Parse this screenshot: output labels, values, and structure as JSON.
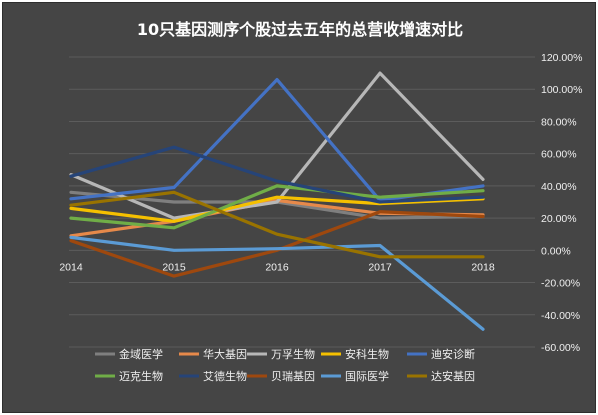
{
  "chart_data": {
    "type": "line",
    "title": "10只基因测序个股过去五年的总营收增速对比",
    "xlabel": "",
    "ylabel": "",
    "categories": [
      "2014",
      "2015",
      "2016",
      "2017",
      "2018"
    ],
    "ylim": [
      -0.6,
      1.2
    ],
    "yticks": [
      1.2,
      1.0,
      0.8,
      0.6,
      0.4,
      0.2,
      0.0,
      -0.2,
      -0.4,
      -0.6
    ],
    "ytick_labels": [
      "120.00%",
      "100.00%",
      "80.00%",
      "60.00%",
      "40.00%",
      "20.00%",
      "0.00%",
      "-20.00%",
      "-40.00%",
      "-60.00%"
    ],
    "grid": true,
    "legend_position": "bottom",
    "series": [
      {
        "name": "金域医学",
        "color": "#7f7f7f",
        "values": [
          0.36,
          0.3,
          0.3,
          0.2,
          0.21
        ]
      },
      {
        "name": "华大基因",
        "color": "#e6894a",
        "values": [
          0.09,
          0.18,
          0.31,
          0.23,
          0.22
        ]
      },
      {
        "name": "万孚生物",
        "color": "#b7b7b7",
        "values": [
          0.47,
          0.2,
          0.3,
          1.1,
          0.44
        ]
      },
      {
        "name": "安科生物",
        "color": "#f5c000",
        "values": [
          0.26,
          0.18,
          0.33,
          0.29,
          0.32
        ]
      },
      {
        "name": "迪安诊断",
        "color": "#4472c4",
        "values": [
          0.32,
          0.39,
          1.06,
          0.31,
          0.4
        ]
      },
      {
        "name": "迈克生物",
        "color": "#70ad47",
        "values": [
          0.2,
          0.14,
          0.4,
          0.33,
          0.37
        ]
      },
      {
        "name": "艾德生物",
        "color": "#264478",
        "values": [
          0.46,
          0.64,
          0.43,
          0.3,
          0.33
        ]
      },
      {
        "name": "贝瑞基因",
        "color": "#9e480e",
        "values": [
          0.06,
          -0.16,
          0.0,
          0.24,
          0.21
        ]
      },
      {
        "name": "国际医学",
        "color": "#5b9bd5",
        "values": [
          0.08,
          0.0,
          0.01,
          0.03,
          -0.49
        ]
      },
      {
        "name": "达安基因",
        "color": "#997300",
        "values": [
          0.28,
          0.36,
          0.1,
          -0.04,
          -0.04
        ]
      }
    ]
  }
}
